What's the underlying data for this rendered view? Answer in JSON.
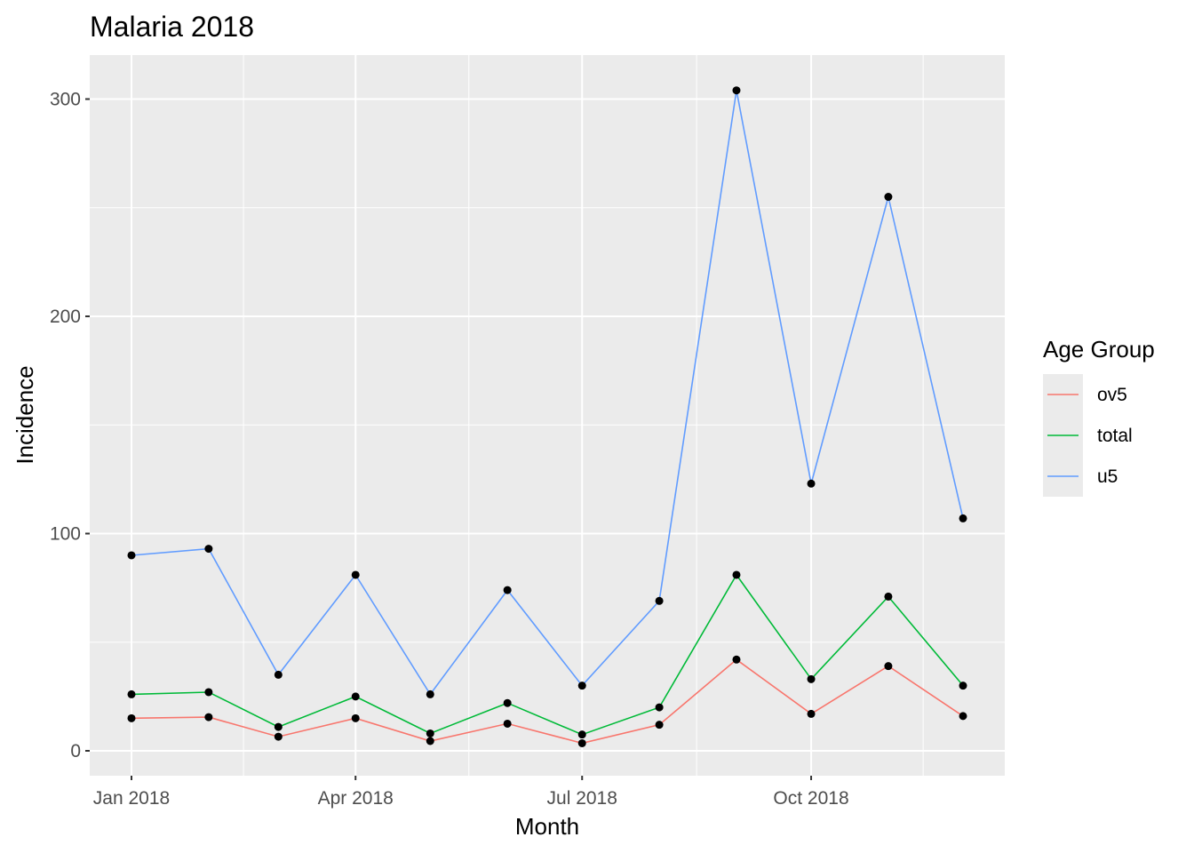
{
  "chart_data": {
    "type": "line",
    "title": "Malaria 2018",
    "xlabel": "Month",
    "ylabel": "Incidence",
    "x": [
      "2018-01",
      "2018-02",
      "2018-03",
      "2018-04",
      "2018-05",
      "2018-06",
      "2018-07",
      "2018-08",
      "2018-09",
      "2018-10",
      "2018-11",
      "2018-12"
    ],
    "x_ticks": [
      {
        "x": "2018-01",
        "label": "Jan 2018"
      },
      {
        "x": "2018-04",
        "label": "Apr 2018"
      },
      {
        "x": "2018-07",
        "label": "Jul 2018"
      },
      {
        "x": "2018-10",
        "label": "Oct 2018"
      }
    ],
    "y_ticks": [
      0,
      100,
      200,
      300
    ],
    "ylim": [
      -12,
      320
    ],
    "grid": true,
    "background": "#ebebeb",
    "point_color": "#000000",
    "legend": {
      "title": "Age Group",
      "position": "right"
    },
    "series": [
      {
        "name": "ov5",
        "color": "#f8766d",
        "values": [
          15,
          15.5,
          6.5,
          15,
          4.5,
          12.5,
          3.5,
          12,
          42,
          17,
          39,
          16
        ]
      },
      {
        "name": "total",
        "color": "#00ba38",
        "values": [
          26,
          27,
          11,
          25,
          8,
          22,
          7.5,
          20,
          81,
          33,
          71,
          30
        ]
      },
      {
        "name": "u5",
        "color": "#619cff",
        "values": [
          90,
          93,
          35,
          81,
          26,
          74,
          30,
          69,
          304,
          123,
          255,
          107
        ]
      }
    ]
  }
}
